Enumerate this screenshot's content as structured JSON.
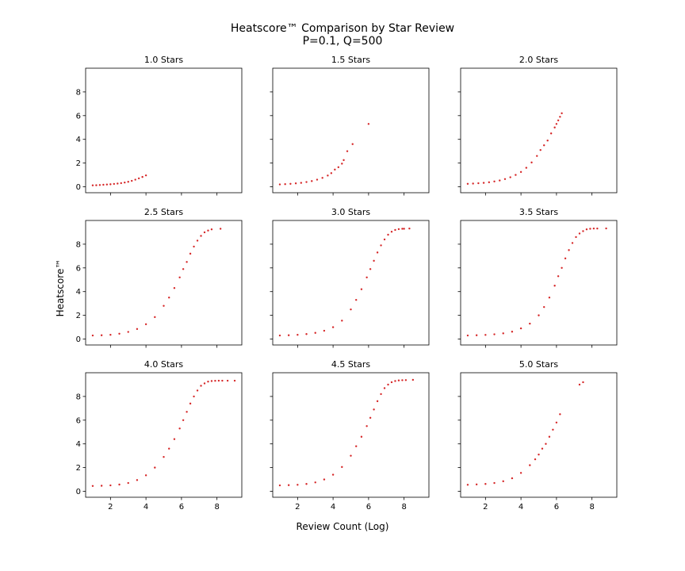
{
  "title_line1": "Heatscore™ Comparison by Star Review",
  "title_line2": "P=0.1, Q=500",
  "xlabel": "Review Count (Log)",
  "ylabel": "Heatscore™",
  "colors": {
    "points": "#d62728"
  },
  "chart_data": {
    "type": "scatter",
    "xlim": [
      0.6,
      9.4
    ],
    "ylim": [
      -0.5,
      10.0
    ],
    "xticks": [
      2,
      4,
      6,
      8
    ],
    "yticks": [
      0,
      2,
      4,
      6,
      8
    ],
    "grid": false,
    "shared_x": true,
    "shared_y": true,
    "panels": [
      {
        "title": "1.0 Stars",
        "x": [
          1.0,
          1.2,
          1.4,
          1.6,
          1.8,
          2.0,
          2.2,
          2.4,
          2.6,
          2.8,
          3.0,
          3.2,
          3.4,
          3.6,
          3.8,
          4.0
        ],
        "y": [
          0.12,
          0.13,
          0.15,
          0.17,
          0.19,
          0.21,
          0.24,
          0.27,
          0.31,
          0.36,
          0.42,
          0.5,
          0.6,
          0.71,
          0.83,
          0.96
        ]
      },
      {
        "title": "1.5 Stars",
        "x": [
          1.0,
          1.3,
          1.6,
          1.9,
          2.2,
          2.5,
          2.8,
          3.1,
          3.4,
          3.7,
          3.9,
          4.1,
          4.3,
          4.5,
          4.6,
          4.8,
          5.1,
          6.0
        ],
        "y": [
          0.2,
          0.22,
          0.25,
          0.29,
          0.33,
          0.4,
          0.48,
          0.6,
          0.75,
          0.95,
          1.15,
          1.45,
          1.65,
          1.95,
          2.25,
          3.0,
          3.6,
          5.3
        ]
      },
      {
        "title": "2.0 Stars",
        "x": [
          1.0,
          1.3,
          1.6,
          1.9,
          2.2,
          2.5,
          2.8,
          3.1,
          3.4,
          3.7,
          4.0,
          4.3,
          4.6,
          4.9,
          5.1,
          5.3,
          5.5,
          5.7,
          5.9,
          6.0,
          6.1,
          6.2,
          6.3
        ],
        "y": [
          0.25,
          0.27,
          0.3,
          0.33,
          0.38,
          0.45,
          0.53,
          0.65,
          0.8,
          1.0,
          1.25,
          1.6,
          2.05,
          2.6,
          3.1,
          3.5,
          3.9,
          4.5,
          5.0,
          5.3,
          5.6,
          5.9,
          6.2
        ]
      },
      {
        "title": "2.5 Stars",
        "x": [
          1.0,
          1.5,
          2.0,
          2.5,
          3.0,
          3.5,
          4.0,
          4.5,
          5.0,
          5.3,
          5.6,
          5.9,
          6.1,
          6.3,
          6.5,
          6.7,
          6.9,
          7.1,
          7.3,
          7.5,
          7.7,
          8.2
        ],
        "y": [
          0.3,
          0.32,
          0.36,
          0.45,
          0.6,
          0.85,
          1.25,
          1.85,
          2.8,
          3.5,
          4.3,
          5.2,
          5.9,
          6.5,
          7.2,
          7.8,
          8.3,
          8.7,
          9.0,
          9.15,
          9.25,
          9.3
        ]
      },
      {
        "title": "3.0 Stars",
        "x": [
          1.0,
          1.5,
          2.0,
          2.5,
          3.0,
          3.5,
          4.0,
          4.5,
          5.0,
          5.3,
          5.6,
          5.9,
          6.1,
          6.3,
          6.5,
          6.7,
          6.9,
          7.1,
          7.3,
          7.5,
          7.7,
          7.9,
          8.0,
          8.3
        ],
        "y": [
          0.3,
          0.32,
          0.36,
          0.42,
          0.52,
          0.7,
          1.0,
          1.55,
          2.5,
          3.3,
          4.2,
          5.2,
          5.9,
          6.6,
          7.3,
          7.9,
          8.4,
          8.8,
          9.05,
          9.2,
          9.27,
          9.3,
          9.3,
          9.32
        ]
      },
      {
        "title": "3.5 Stars",
        "x": [
          1.0,
          1.5,
          2.0,
          2.5,
          3.0,
          3.5,
          4.0,
          4.5,
          5.0,
          5.3,
          5.6,
          5.9,
          6.1,
          6.3,
          6.5,
          6.7,
          6.9,
          7.1,
          7.3,
          7.5,
          7.7,
          7.9,
          8.1,
          8.3,
          8.8
        ],
        "y": [
          0.3,
          0.32,
          0.35,
          0.4,
          0.48,
          0.62,
          0.9,
          1.3,
          2.0,
          2.7,
          3.5,
          4.5,
          5.3,
          6.0,
          6.8,
          7.5,
          8.1,
          8.6,
          8.9,
          9.1,
          9.25,
          9.3,
          9.32,
          9.32,
          9.33
        ]
      },
      {
        "title": "4.0 Stars",
        "x": [
          1.0,
          1.5,
          2.0,
          2.5,
          3.0,
          3.5,
          4.0,
          4.5,
          5.0,
          5.3,
          5.6,
          5.9,
          6.1,
          6.3,
          6.5,
          6.7,
          6.9,
          7.1,
          7.3,
          7.5,
          7.7,
          7.9,
          8.1,
          8.3,
          8.6,
          9.0
        ],
        "y": [
          0.45,
          0.47,
          0.5,
          0.57,
          0.7,
          0.95,
          1.35,
          2.0,
          2.9,
          3.6,
          4.4,
          5.3,
          6.0,
          6.7,
          7.4,
          8.0,
          8.5,
          8.9,
          9.1,
          9.25,
          9.3,
          9.32,
          9.33,
          9.33,
          9.33,
          9.33
        ]
      },
      {
        "title": "4.5 Stars",
        "x": [
          1.0,
          1.5,
          2.0,
          2.5,
          3.0,
          3.5,
          4.0,
          4.5,
          5.0,
          5.3,
          5.6,
          5.9,
          6.1,
          6.3,
          6.5,
          6.7,
          6.9,
          7.1,
          7.3,
          7.5,
          7.7,
          7.9,
          8.1,
          8.5
        ],
        "y": [
          0.5,
          0.52,
          0.55,
          0.62,
          0.75,
          1.0,
          1.4,
          2.05,
          3.0,
          3.8,
          4.6,
          5.5,
          6.2,
          6.9,
          7.6,
          8.2,
          8.7,
          9.0,
          9.2,
          9.3,
          9.35,
          9.37,
          9.38,
          9.4
        ]
      },
      {
        "title": "5.0 Stars",
        "x": [
          1.0,
          1.5,
          2.0,
          2.5,
          3.0,
          3.5,
          4.0,
          4.5,
          4.8,
          5.0,
          5.2,
          5.4,
          5.6,
          5.8,
          6.0,
          6.2,
          7.3,
          7.5
        ],
        "y": [
          0.55,
          0.58,
          0.62,
          0.7,
          0.85,
          1.1,
          1.55,
          2.2,
          2.7,
          3.1,
          3.6,
          4.0,
          4.6,
          5.2,
          5.8,
          6.5,
          9.0,
          9.2
        ]
      }
    ]
  }
}
